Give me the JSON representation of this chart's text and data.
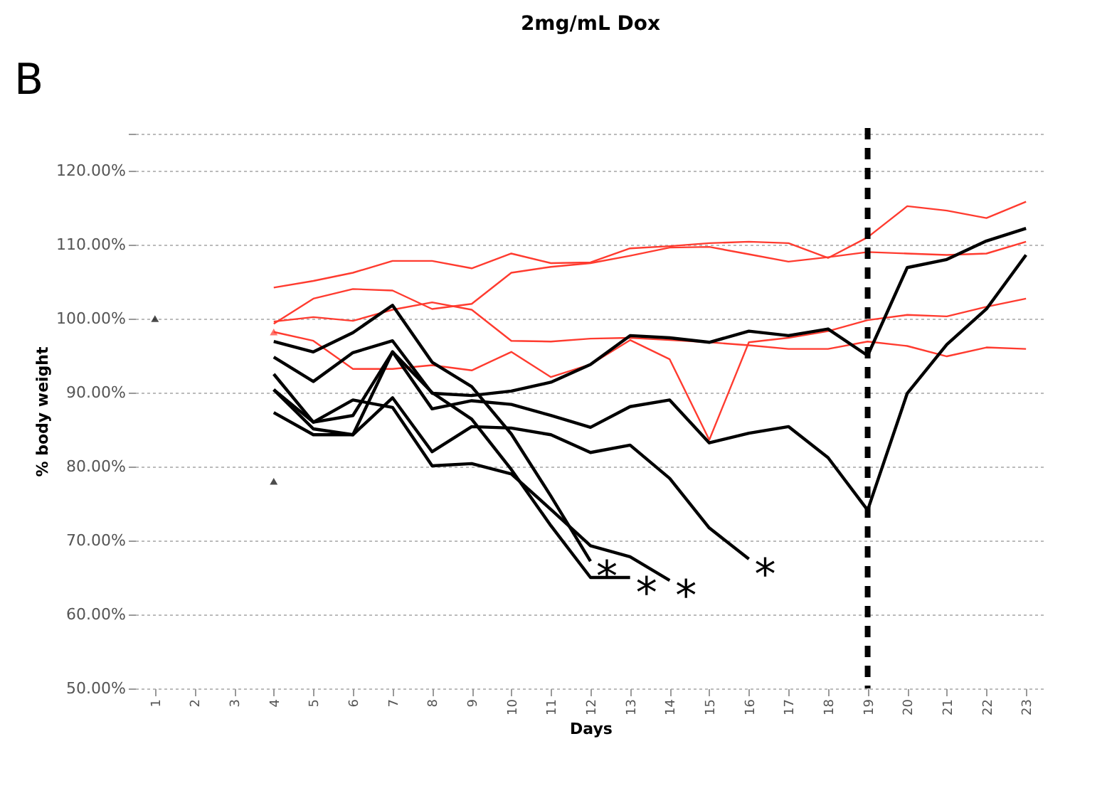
{
  "chart_data": {
    "type": "line",
    "title": "2mg/mL Dox",
    "xlabel": "Days",
    "ylabel": "% body weight",
    "categories": [
      "1",
      "2",
      "3",
      "4",
      "5",
      "6",
      "7",
      "8",
      "9",
      "10",
      "11",
      "12",
      "13",
      "14",
      "15",
      "16",
      "17",
      "18",
      "19",
      "20",
      "21",
      "22",
      "23"
    ],
    "series": [
      {
        "color": "#ff3b2f",
        "values": [
          null,
          null,
          null,
          104.2,
          105.1,
          106.2,
          107.8,
          107.8,
          106.8,
          108.8,
          107.5,
          107.6,
          109.5,
          109.8,
          110.2,
          110.4,
          110.2,
          108.2,
          111,
          115.2,
          114.6,
          113.6,
          115.8
        ]
      },
      {
        "color": "#ff3b2f",
        "values": [
          null,
          null,
          null,
          99.3,
          102.7,
          104,
          103.8,
          101.3,
          102,
          106.2,
          107,
          107.5,
          108.5,
          109.6,
          109.7,
          108.7,
          107.7,
          108.3,
          109,
          108.8,
          108.6,
          108.8,
          110.4
        ]
      },
      {
        "color": "#ff3b2f",
        "values": [
          null,
          null,
          null,
          99.6,
          100.2,
          99.7,
          101.2,
          102.2,
          101.2,
          97,
          96.9,
          97.3,
          97.4,
          97.1,
          96.8,
          96.4,
          95.9,
          95.9,
          96.9,
          96.3,
          94.9,
          96.1,
          95.9
        ]
      },
      {
        "color": "#ff3b2f",
        "values": [
          null,
          null,
          null,
          98.2,
          97,
          93.2,
          93.2,
          93.7,
          93,
          95.5,
          92.1,
          93.8,
          97.1,
          94.5,
          83.6,
          96.8,
          97.4,
          98.3,
          99.8,
          100.5,
          100.3,
          101.6,
          102.7
        ]
      },
      {
        "color": "#000000",
        "values": [
          null,
          null,
          null,
          94.8,
          91.5,
          95.4,
          97,
          89.9,
          89.6,
          90.2,
          91.4,
          93.8,
          97.7,
          97.4,
          96.8,
          98.3,
          97.7,
          98.6,
          95,
          106.9,
          108,
          110.5,
          112.2
        ]
      },
      {
        "color": "#000000",
        "values": [
          null,
          null,
          null,
          90.4,
          85.1,
          84.3,
          95.5,
          87.8,
          88.9,
          88.4,
          86.9,
          85.3,
          88.1,
          89,
          83.2,
          84.5,
          85.4,
          81.2,
          74.1,
          89.9,
          96.5,
          101.3,
          108.6
        ]
      },
      {
        "color": "#000000",
        "values": [
          null,
          null,
          null,
          87.3,
          84.3,
          84.3,
          89.3,
          82,
          85.4,
          85.2,
          84.3,
          81.9,
          82.9,
          78.4,
          71.7,
          67.5,
          null,
          null,
          null,
          null,
          null,
          null,
          null
        ]
      },
      {
        "color": "#000000",
        "values": [
          null,
          null,
          null,
          96.9,
          95.5,
          98.1,
          101.8,
          94.1,
          90.8,
          84.4,
          76,
          67.2,
          null,
          null,
          null,
          null,
          null,
          null,
          null,
          null,
          null,
          null,
          null
        ]
      },
      {
        "color": "#000000",
        "values": [
          null,
          null,
          null,
          92.5,
          86,
          86.9,
          95.5,
          90,
          86.4,
          79.6,
          72,
          65,
          65,
          null,
          null,
          null,
          null,
          null,
          null,
          null,
          null,
          null,
          null
        ]
      },
      {
        "color": "#000000",
        "values": [
          null,
          null,
          null,
          90.4,
          86,
          89,
          88,
          80.1,
          80.4,
          79,
          74.2,
          69.3,
          67.8,
          64.6,
          null,
          null,
          null,
          null,
          null,
          null,
          null,
          null,
          null
        ]
      },
      {
        "type": "scatter",
        "marker": "triangle",
        "color": "#000000",
        "values": [
          100,
          null,
          null,
          78,
          null,
          null,
          null,
          null,
          null,
          null,
          null,
          null,
          null,
          null,
          null,
          null,
          null,
          null,
          null,
          null,
          null,
          null,
          null
        ]
      },
      {
        "type": "scatter",
        "marker": "triangle",
        "color": "#ff3b2f",
        "values": [
          null,
          null,
          null,
          98.2,
          null,
          null,
          null,
          null,
          null,
          null,
          null,
          null,
          null,
          null,
          null,
          null,
          null,
          null,
          null,
          null,
          null,
          null,
          null
        ]
      }
    ],
    "ylim": [
      50,
      125
    ],
    "yticks": [
      {
        "value": 50,
        "label": "50.00%"
      },
      {
        "value": 60,
        "label": "60.00%"
      },
      {
        "value": 70,
        "label": "70.00%"
      },
      {
        "value": 80,
        "label": "80.00%"
      },
      {
        "value": 90,
        "label": "90.00%"
      },
      {
        "value": 100,
        "label": "100.00%"
      },
      {
        "value": 110,
        "label": "110.00%"
      },
      {
        "value": 120,
        "label": "120.00%"
      },
      {
        "value": 125,
        "label": null
      }
    ],
    "grid": "y",
    "marker": "none",
    "line_style": "solid",
    "ref_lines": [
      {
        "axis": "x",
        "value": "19",
        "color": "#000000",
        "line_style": "dashed"
      }
    ],
    "annotations": [
      "B",
      {
        "text": "*",
        "x": "12",
        "y": 67.2
      },
      {
        "text": "*",
        "x": "13",
        "y": 65
      },
      {
        "text": "*",
        "x": "14",
        "y": 64.6
      },
      {
        "text": "*",
        "x": "16",
        "y": 67.5
      }
    ]
  }
}
